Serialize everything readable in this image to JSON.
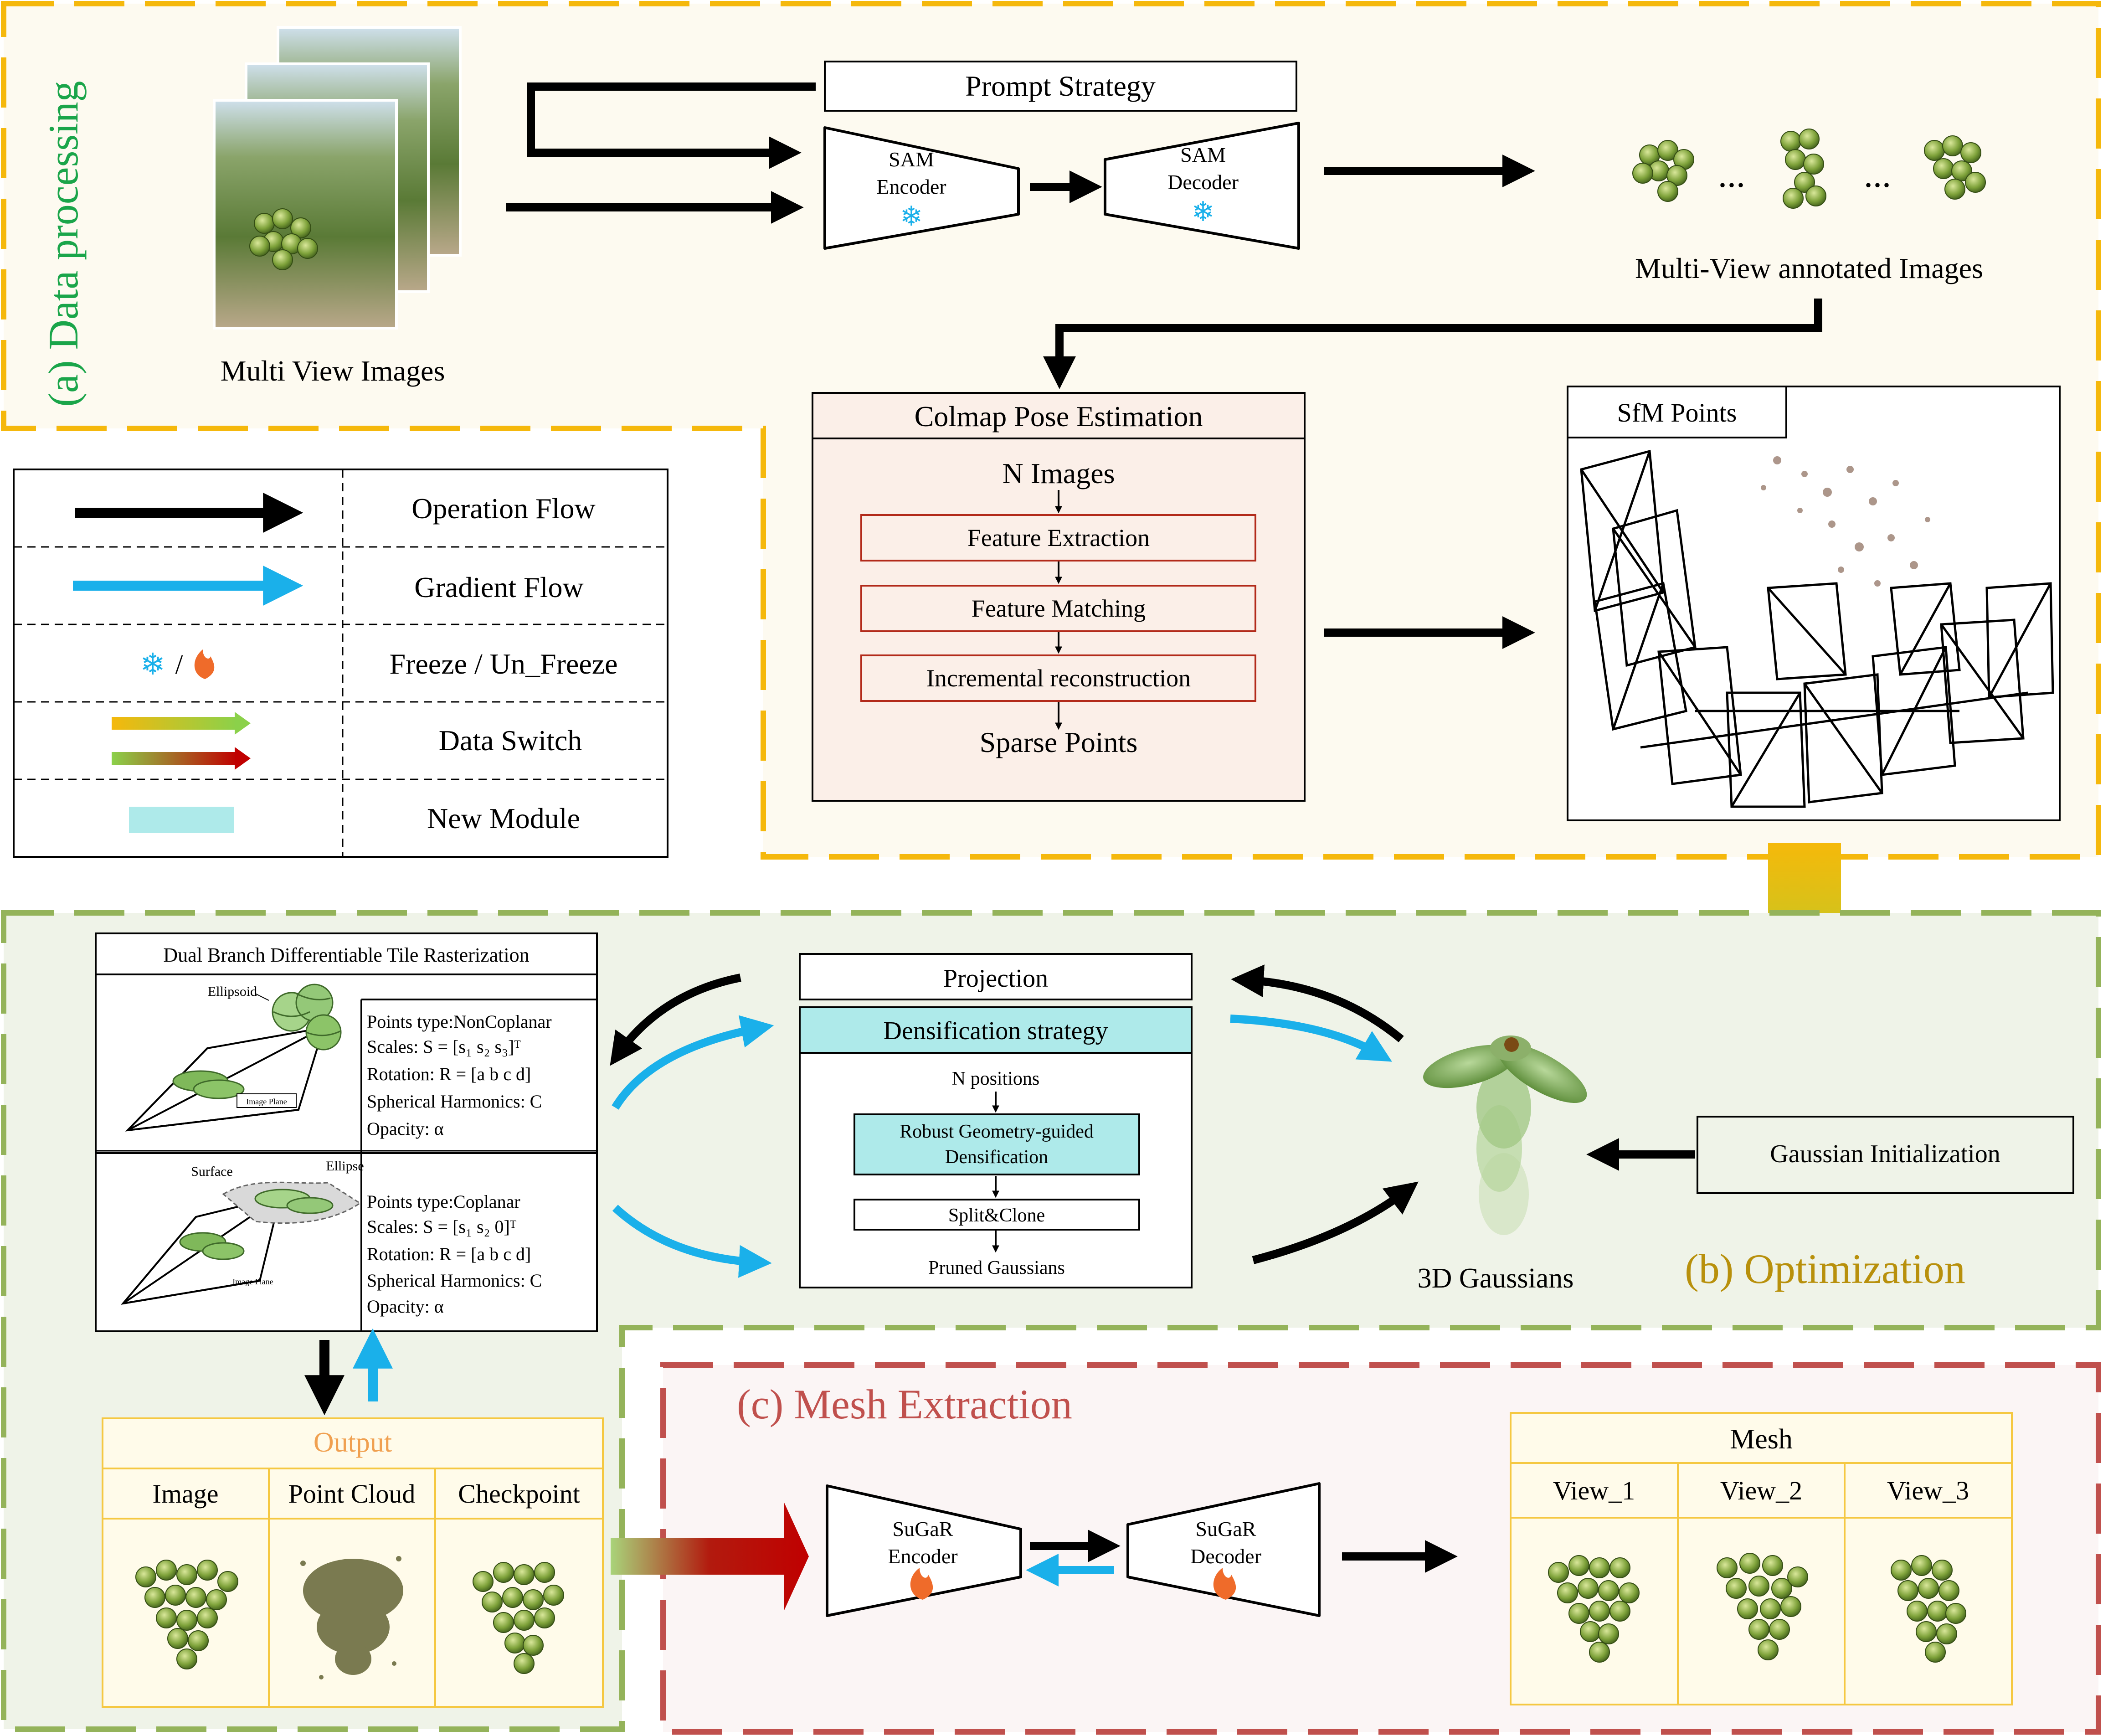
{
  "data_processing": {
    "section_label": "(a) Data processing",
    "multi_view_caption": "Multi View Images",
    "prompt_strategy": "Prompt Strategy",
    "sam_encoder": [
      "SAM",
      "Encoder"
    ],
    "sam_decoder": [
      "SAM",
      "Decoder"
    ],
    "annotated_caption": "Multi-View annotated Images",
    "ellipsis": "...",
    "colmap": {
      "title": "Colmap Pose Estimation",
      "n_images": "N Images",
      "steps": [
        "Feature Extraction",
        "Feature Matching",
        "Incremental reconstruction"
      ],
      "sparse_points": "Sparse Points"
    },
    "sfm_title": "SfM Points"
  },
  "legend": {
    "rows": [
      "Operation Flow",
      "Gradient Flow",
      "Freeze / Un_Freeze",
      "Data Switch",
      "New Module"
    ],
    "freeze_sep": "/"
  },
  "optimization": {
    "section_label": "(b) Optimization",
    "raster_title": "Dual Branch  Differentiable Tile Rasterization",
    "noncoplanar": {
      "lines": [
        "Points type:NonCoplanar",
        "Scales: S = [s₁ s₂ s₃]ᵀ",
        "Rotation: R = [a b c d]",
        "Spherical Harmonics: C",
        "Opacity:  α"
      ],
      "ellipsoid_label": "Ellipsoid",
      "plane_label": "Image Plane"
    },
    "coplanar": {
      "lines": [
        "Points type:Coplanar",
        "Scales: S = [s₁ s₂ 0]ᵀ",
        "Rotation: R = [a b c d]",
        "Spherical Harmonics: C",
        "Opacity:  α"
      ],
      "surface_label": "Surface",
      "ellipse_label": "Ellipse",
      "plane_label": "Image Plane"
    },
    "projection": "Projection",
    "densification": "Densification strategy",
    "n_positions": "N positions",
    "robust": [
      "Robust Geometry-guided",
      "Densification"
    ],
    "split_clone": "Split&Clone",
    "pruned": "Pruned Gaussians",
    "gaussians_caption": "3D Gaussians",
    "gaussian_init": "Gaussian Initialization"
  },
  "output": {
    "title": "Output",
    "columns": [
      "Image",
      "Point Cloud",
      "Checkpoint"
    ]
  },
  "mesh_extraction": {
    "section_label": "(c) Mesh Extraction",
    "sugar_encoder": [
      "SuGaR",
      "Encoder"
    ],
    "sugar_decoder": [
      "SuGaR",
      "Decoder"
    ],
    "mesh_title": "Mesh",
    "views": [
      "View_1",
      "View_2",
      "View_3"
    ]
  },
  "colors": {
    "section_a": "#f5b80c",
    "section_b": "#94b35a",
    "section_c": "#c0504d",
    "gradient_flow": "#1ab0ea",
    "new_module": "#aeeaea",
    "label_a": "#1aa54a",
    "label_b": "#b8900c",
    "label_c": "#c0504d",
    "output_title": "#f0a050"
  }
}
